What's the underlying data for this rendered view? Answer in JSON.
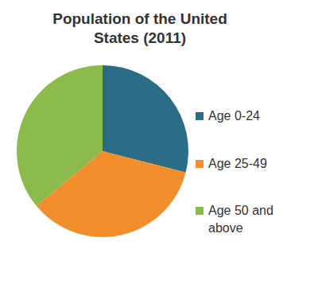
{
  "chart_data": {
    "type": "pie",
    "title": "Population of the United States (2011)",
    "categories": [
      "Age 0-24",
      "Age 25-49",
      "Age 50 and above"
    ],
    "values": [
      29,
      35,
      36
    ],
    "colors": [
      "#2b6c86",
      "#f28e2b",
      "#8cbb4b"
    ],
    "legend": "right"
  }
}
